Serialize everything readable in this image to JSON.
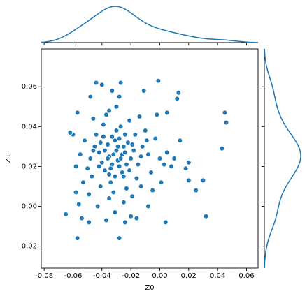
{
  "chart_data": {
    "type": "scatter",
    "xlabel": "Z0",
    "ylabel": "Z1",
    "color": "#1f77b4",
    "x": [
      -0.03,
      -0.035,
      -0.025,
      -0.04,
      -0.028,
      -0.033,
      -0.02,
      -0.045,
      -0.038,
      -0.022,
      -0.031,
      -0.027,
      -0.042,
      -0.018,
      -0.036,
      -0.029,
      -0.048,
      -0.015,
      -0.034,
      -0.024,
      -0.039,
      -0.026,
      -0.044,
      -0.012,
      -0.032,
      -0.05,
      -0.021,
      -0.037,
      -0.016,
      -0.041,
      -0.03,
      -0.008,
      -0.052,
      -0.023,
      -0.035,
      -0.046,
      -0.01,
      -0.028,
      -0.055,
      -0.019,
      -0.043,
      -0.006,
      -0.033,
      -0.04,
      -0.048,
      -0.025,
      -0.014,
      -0.053,
      -0.003,
      -0.031,
      -0.037,
      -0.02,
      -0.057,
      -0.005,
      -0.049,
      -0.002,
      -0.027,
      -0.011,
      -0.058,
      -0.044,
      -0.054,
      -0.049,
      -0.024,
      -0.016,
      -0.008,
      0.0,
      0.003,
      0.005,
      0.008,
      0.01,
      0.001,
      0.005,
      -0.001,
      0.004,
      0.013,
      0.012,
      0.014,
      0.018,
      0.02,
      0.02,
      0.025,
      0.03,
      0.032,
      0.043,
      0.045,
      0.046,
      -0.065,
      -0.057,
      -0.028,
      -0.06,
      -0.062,
      -0.058,
      -0.056,
      -0.047,
      -0.035,
      -0.013,
      -0.009,
      -0.033,
      -0.026,
      -0.038,
      -0.031,
      -0.023,
      -0.029,
      -0.034,
      -0.036,
      -0.024,
      -0.028,
      -0.042,
      -0.019,
      -0.032,
      -0.027,
      -0.039,
      -0.021,
      -0.046,
      -0.017,
      -0.03,
      -0.041,
      -0.025,
      -0.035,
      -0.013
    ],
    "y": [
      0.028,
      0.025,
      0.03,
      0.022,
      0.02,
      0.035,
      0.024,
      0.03,
      0.018,
      0.032,
      0.015,
      0.04,
      0.027,
      0.028,
      0.031,
      0.023,
      0.024,
      0.021,
      0.012,
      0.036,
      0.041,
      0.017,
      0.036,
      0.03,
      0.007,
      0.019,
      0.043,
      0.046,
      0.014,
      0.01,
      0.05,
      0.026,
      0.033,
      0.009,
      0.004,
      0.044,
      0.038,
      0.055,
      0.026,
      0.005,
      0.0,
      0.017,
      0.058,
      0.061,
      0.055,
      0.002,
      0.045,
      0.012,
      0.034,
      -0.003,
      -0.007,
      -0.005,
      0.047,
      0.008,
      0.006,
      0.046,
      0.062,
      0.058,
      0.02,
      0.062,
      -0.006,
      -0.008,
      -0.008,
      -0.006,
      0.0,
      0.024,
      0.021,
      0.027,
      0.02,
      0.024,
      0.012,
      0.047,
      0.063,
      -0.008,
      0.057,
      0.054,
      0.033,
      0.019,
      0.013,
      0.022,
      0.008,
      0.013,
      -0.005,
      0.029,
      0.047,
      0.042,
      -0.004,
      -0.016,
      -0.016,
      0.036,
      0.037,
      0.007,
      0.001,
      0.015,
      0.048,
      0.01,
      0.033,
      0.021,
      0.026,
      0.028,
      0.033,
      0.021,
      0.03,
      0.019,
      0.024,
      0.027,
      0.034,
      0.02,
      0.031,
      0.026,
      0.024,
      0.035,
      0.018,
      0.028,
      0.036,
      0.038,
      0.032,
      0.015,
      0.016,
      0.025
    ],
    "xlim": [
      -0.082,
      0.068
    ],
    "ylim": [
      -0.031,
      0.079
    ],
    "xticks": [
      -0.08,
      -0.06,
      -0.04,
      -0.02,
      {
        "value": 0,
        "label": "0.00"
      },
      0.02,
      0.04,
      0.06
    ],
    "yticks": [
      -0.02,
      {
        "value": 0,
        "label": "0.00"
      },
      0.02,
      0.04,
      0.06
    ]
  }
}
